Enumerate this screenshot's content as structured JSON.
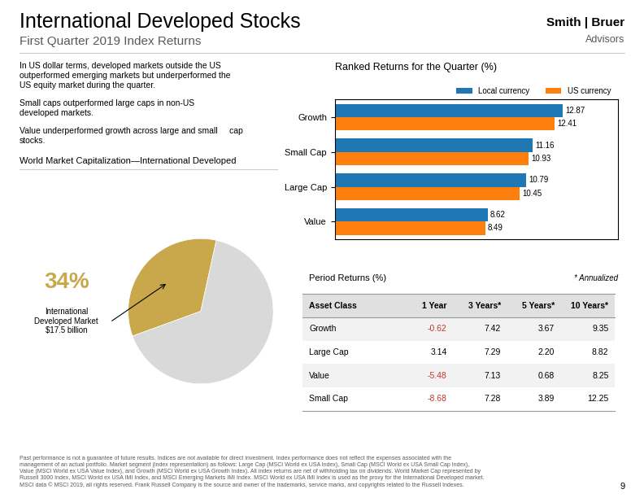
{
  "title": "International Developed Stocks",
  "subtitle": "First Quarter 2019 Index Returns",
  "annotations": [
    "Smith | Bruer",
    "Advisors",
    "In US dollar terms, developed markets outside the US\noutperformed emerging markets but underperformed the\nUS equity market during the quarter.",
    "Small caps outperformed large caps in non-US\ndeveloped markets.",
    "Value underperformed growth across large and small     cap\nstocks.",
    "Past performance is not a guarantee of future results. Indices are not available for direct investment. Index performance does not reflect the expenses associated with the\nmanagement of an actual portfolio. Market segment (index representation) as follows: Large Cap (MSCI World ex USA Index), Small Cap (MSCI World ex USA Small Cap Index),\nValue (MSCI World ex USA Value Index), and Growth (MSCI World ex USA Growth Index). All index returns are net of withholding tax on dividends. World Market Cap represented by\nRussell 3000 Index, MSCI World ex USA IMI Index, and MSCI Emerging Markets IMI Index. MSCI World ex USA IMI Index is used as the proxy for the International Developed market.\nMSCI data © MSCI 2019, all rights reserved. Frank Russell Company is the source and owner of the trademarks, service marks, and copyrights related to the Russell Indexes.",
    "9"
  ],
  "chart_data": [
    {
      "type": "bar",
      "orientation": "horizontal",
      "title": "Ranked Returns for the Quarter (%)",
      "categories": [
        "Growth",
        "Small Cap",
        "Large Cap",
        "Value"
      ],
      "series": [
        {
          "name": "Local currency",
          "values": [
            12.87,
            11.16,
            10.79,
            8.62
          ]
        },
        {
          "name": "US currency",
          "values": [
            12.41,
            10.93,
            10.45,
            8.49
          ]
        }
      ],
      "xlim": [
        0,
        16
      ],
      "tick_labels": "y",
      "data_labels": true,
      "legend": "upper right"
    },
    {
      "type": "pie",
      "title": "World Market Capitalization—International Developed",
      "categories": [
        "International\nDeveloped Market\n$17.5 billion",
        null
      ],
      "values": [
        34,
        66
      ],
      "value_labels": [
        "34%",
        null
      ],
      "colors": [
        "#c9a84c",
        "#d9d9d9"
      ]
    },
    {
      "type": "table",
      "title": "Period Returns (%)",
      "annotations": [
        "* Annualized"
      ],
      "columns": [
        "Asset Class",
        "1 Year",
        "3 Years*",
        "5 Years*",
        "10 Years*"
      ],
      "rows": [
        [
          "Growth",
          "-0.62",
          "7.42",
          "3.67",
          "9.35"
        ],
        [
          "Large Cap",
          "3.14",
          "7.29",
          "2.20",
          "8.82"
        ],
        [
          "Value",
          "-5.48",
          "7.13",
          "0.68",
          "8.25"
        ],
        [
          "Small Cap",
          "-8.68",
          "7.28",
          "3.89",
          "12.25"
        ]
      ],
      "color": "#c0392b"
    }
  ]
}
